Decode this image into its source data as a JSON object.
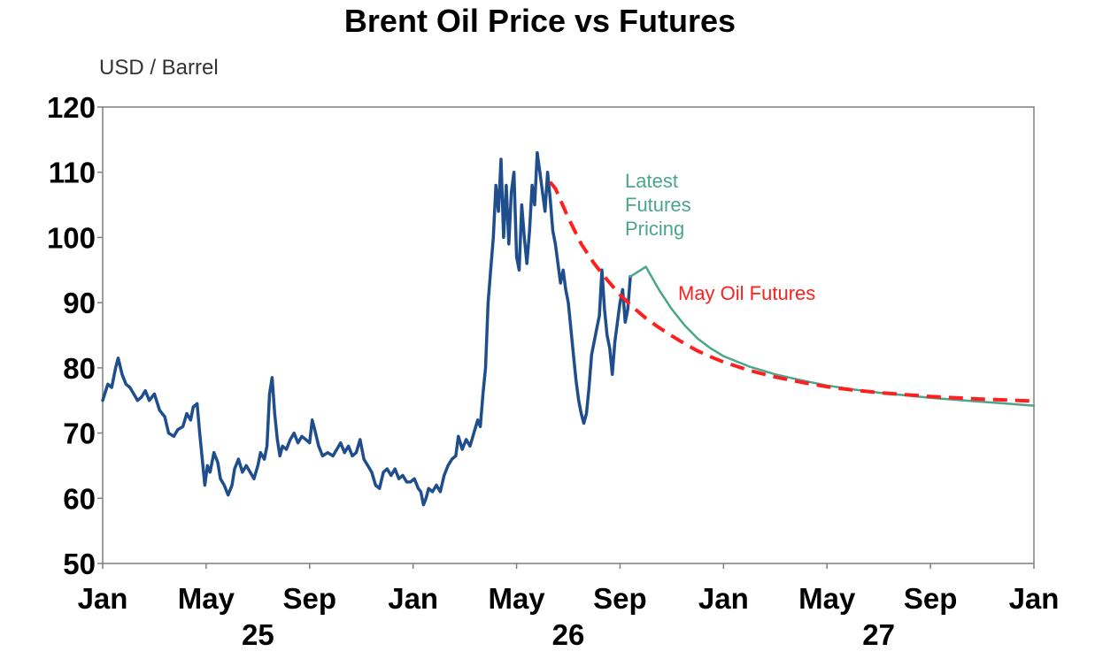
{
  "chart_data": {
    "type": "line",
    "title": "Brent Oil Price vs Futures",
    "ylabel": "USD / Barrel",
    "xlabel": "",
    "ylim": [
      50,
      120
    ],
    "yticks": [
      50,
      60,
      70,
      80,
      90,
      100,
      110,
      120
    ],
    "x_range_months": [
      0,
      36
    ],
    "x_ticks": [
      {
        "m": 0,
        "label": "Jan"
      },
      {
        "m": 4,
        "label": "May"
      },
      {
        "m": 8,
        "label": "Sep"
      },
      {
        "m": 12,
        "label": "Jan"
      },
      {
        "m": 16,
        "label": "May"
      },
      {
        "m": 20,
        "label": "Sep"
      },
      {
        "m": 24,
        "label": "Jan"
      },
      {
        "m": 28,
        "label": "May"
      },
      {
        "m": 32,
        "label": "Sep"
      },
      {
        "m": 36,
        "label": "Jan"
      }
    ],
    "years": [
      {
        "m": 6,
        "label": "25"
      },
      {
        "m": 18,
        "label": "26"
      },
      {
        "m": 30,
        "label": "27"
      }
    ],
    "grid": false,
    "legend": "annotations",
    "series": [
      {
        "key": "brent",
        "color": "#1f4e8c",
        "x_unit": "months since Jan 2025",
        "points": [
          [
            0.0,
            75.0
          ],
          [
            0.2,
            77.5
          ],
          [
            0.35,
            77.0
          ],
          [
            0.5,
            80.0
          ],
          [
            0.6,
            81.5
          ],
          [
            0.75,
            79.0
          ],
          [
            0.9,
            77.5
          ],
          [
            1.05,
            77.0
          ],
          [
            1.2,
            76.0
          ],
          [
            1.35,
            75.0
          ],
          [
            1.5,
            75.5
          ],
          [
            1.65,
            76.5
          ],
          [
            1.8,
            75.0
          ],
          [
            2.0,
            76.0
          ],
          [
            2.2,
            73.5
          ],
          [
            2.4,
            72.5
          ],
          [
            2.55,
            70.0
          ],
          [
            2.75,
            69.5
          ],
          [
            2.9,
            70.5
          ],
          [
            3.1,
            71.0
          ],
          [
            3.25,
            73.0
          ],
          [
            3.4,
            72.0
          ],
          [
            3.5,
            74.0
          ],
          [
            3.65,
            74.5
          ],
          [
            3.75,
            70.0
          ],
          [
            3.85,
            66.0
          ],
          [
            3.95,
            62.0
          ],
          [
            4.05,
            65.0
          ],
          [
            4.15,
            64.0
          ],
          [
            4.3,
            67.0
          ],
          [
            4.45,
            65.5
          ],
          [
            4.55,
            63.0
          ],
          [
            4.7,
            62.0
          ],
          [
            4.85,
            60.5
          ],
          [
            5.0,
            62.0
          ],
          [
            5.1,
            64.5
          ],
          [
            5.25,
            66.0
          ],
          [
            5.4,
            64.0
          ],
          [
            5.55,
            65.0
          ],
          [
            5.7,
            64.0
          ],
          [
            5.85,
            63.0
          ],
          [
            6.0,
            65.0
          ],
          [
            6.1,
            67.0
          ],
          [
            6.25,
            66.0
          ],
          [
            6.35,
            68.0
          ],
          [
            6.45,
            76.0
          ],
          [
            6.55,
            78.5
          ],
          [
            6.65,
            73.0
          ],
          [
            6.75,
            69.0
          ],
          [
            6.85,
            66.5
          ],
          [
            6.95,
            68.0
          ],
          [
            7.1,
            67.5
          ],
          [
            7.25,
            69.0
          ],
          [
            7.4,
            70.0
          ],
          [
            7.55,
            68.5
          ],
          [
            7.7,
            69.5
          ],
          [
            7.85,
            69.0
          ],
          [
            8.0,
            68.5
          ],
          [
            8.1,
            72.0
          ],
          [
            8.2,
            70.5
          ],
          [
            8.35,
            68.0
          ],
          [
            8.5,
            66.5
          ],
          [
            8.7,
            67.0
          ],
          [
            8.9,
            66.5
          ],
          [
            9.05,
            67.5
          ],
          [
            9.2,
            68.5
          ],
          [
            9.35,
            67.0
          ],
          [
            9.5,
            68.0
          ],
          [
            9.65,
            66.5
          ],
          [
            9.8,
            67.0
          ],
          [
            9.95,
            69.0
          ],
          [
            10.1,
            66.0
          ],
          [
            10.25,
            65.0
          ],
          [
            10.4,
            64.0
          ],
          [
            10.55,
            62.0
          ],
          [
            10.7,
            61.5
          ],
          [
            10.85,
            64.0
          ],
          [
            11.0,
            64.5
          ],
          [
            11.15,
            63.5
          ],
          [
            11.3,
            64.5
          ],
          [
            11.45,
            63.0
          ],
          [
            11.6,
            63.5
          ],
          [
            11.75,
            62.5
          ],
          [
            11.9,
            62.5
          ],
          [
            12.05,
            63.0
          ],
          [
            12.2,
            61.5
          ],
          [
            12.3,
            61.0
          ],
          [
            12.4,
            59.0
          ],
          [
            12.5,
            60.0
          ],
          [
            12.6,
            61.5
          ],
          [
            12.75,
            61.0
          ],
          [
            12.9,
            62.0
          ],
          [
            13.05,
            61.0
          ],
          [
            13.2,
            63.5
          ],
          [
            13.35,
            65.0
          ],
          [
            13.5,
            66.0
          ],
          [
            13.65,
            66.5
          ],
          [
            13.75,
            69.5
          ],
          [
            13.9,
            67.5
          ],
          [
            14.05,
            69.0
          ],
          [
            14.2,
            68.0
          ],
          [
            14.35,
            70.0
          ],
          [
            14.5,
            72.0
          ],
          [
            14.6,
            71.0
          ],
          [
            14.7,
            76.0
          ],
          [
            14.8,
            80.0
          ],
          [
            14.9,
            90.0
          ],
          [
            15.0,
            95.0
          ],
          [
            15.1,
            100.0
          ],
          [
            15.2,
            108.0
          ],
          [
            15.3,
            104.0
          ],
          [
            15.4,
            112.0
          ],
          [
            15.5,
            100.0
          ],
          [
            15.6,
            108.0
          ],
          [
            15.7,
            99.0
          ],
          [
            15.8,
            107.0
          ],
          [
            15.9,
            110.0
          ],
          [
            16.0,
            97.0
          ],
          [
            16.1,
            95.0
          ],
          [
            16.2,
            105.0
          ],
          [
            16.3,
            100.0
          ],
          [
            16.4,
            96.0
          ],
          [
            16.5,
            101.0
          ],
          [
            16.6,
            108.0
          ],
          [
            16.7,
            105.0
          ],
          [
            16.8,
            113.0
          ],
          [
            16.9,
            110.0
          ],
          [
            17.0,
            107.0
          ],
          [
            17.1,
            104.0
          ],
          [
            17.2,
            110.0
          ],
          [
            17.3,
            106.0
          ],
          [
            17.4,
            101.0
          ],
          [
            17.5,
            99.0
          ],
          [
            17.6,
            96.0
          ],
          [
            17.7,
            93.0
          ],
          [
            17.8,
            95.0
          ],
          [
            17.9,
            92.0
          ],
          [
            18.0,
            90.0
          ],
          [
            18.1,
            86.0
          ],
          [
            18.2,
            82.0
          ],
          [
            18.3,
            78.0
          ],
          [
            18.4,
            75.0
          ],
          [
            18.5,
            73.0
          ],
          [
            18.6,
            71.5
          ],
          [
            18.7,
            73.0
          ],
          [
            18.8,
            77.0
          ],
          [
            18.9,
            82.0
          ],
          [
            19.0,
            84.0
          ],
          [
            19.1,
            86.0
          ],
          [
            19.2,
            88.0
          ],
          [
            19.3,
            95.0
          ],
          [
            19.4,
            89.0
          ],
          [
            19.5,
            85.0
          ],
          [
            19.6,
            83.0
          ],
          [
            19.7,
            79.0
          ],
          [
            19.8,
            84.0
          ],
          [
            19.9,
            87.0
          ],
          [
            20.0,
            90.0
          ],
          [
            20.1,
            92.0
          ],
          [
            20.2,
            87.0
          ],
          [
            20.3,
            89.0
          ],
          [
            20.4,
            94.0
          ]
        ]
      },
      {
        "key": "latest_futures",
        "color": "#4aa58a",
        "x_unit": "months since Jan 2025",
        "points": [
          [
            20.4,
            94.0
          ],
          [
            21.0,
            95.5
          ],
          [
            21.5,
            92.0
          ],
          [
            22.0,
            89.0
          ],
          [
            22.5,
            86.5
          ],
          [
            23.0,
            84.5
          ],
          [
            23.5,
            83.0
          ],
          [
            24.0,
            81.8
          ],
          [
            25.0,
            80.2
          ],
          [
            26.0,
            79.0
          ],
          [
            27.0,
            78.1
          ],
          [
            28.0,
            77.3
          ],
          [
            29.0,
            76.7
          ],
          [
            30.0,
            76.2
          ],
          [
            31.0,
            75.8
          ],
          [
            32.0,
            75.4
          ],
          [
            33.0,
            75.1
          ],
          [
            34.0,
            74.8
          ],
          [
            35.0,
            74.5
          ],
          [
            36.0,
            74.2
          ]
        ]
      },
      {
        "key": "may_futures",
        "color": "#ff1f1f",
        "x_unit": "months since Jan 2025",
        "points": [
          [
            17.3,
            108.5
          ],
          [
            17.5,
            107.5
          ],
          [
            18.0,
            103.0
          ],
          [
            18.5,
            99.0
          ],
          [
            19.0,
            96.0
          ],
          [
            19.5,
            93.5
          ],
          [
            20.0,
            91.2
          ],
          [
            20.5,
            89.3
          ],
          [
            21.0,
            87.6
          ],
          [
            21.5,
            86.2
          ],
          [
            22.0,
            84.9
          ],
          [
            22.5,
            83.7
          ],
          [
            23.0,
            82.6
          ],
          [
            23.5,
            81.7
          ],
          [
            24.0,
            80.9
          ],
          [
            25.0,
            79.6
          ],
          [
            26.0,
            78.6
          ],
          [
            27.0,
            77.8
          ],
          [
            28.0,
            77.1
          ],
          [
            29.0,
            76.6
          ],
          [
            30.0,
            76.2
          ],
          [
            31.0,
            75.9
          ],
          [
            32.0,
            75.6
          ],
          [
            33.0,
            75.4
          ],
          [
            34.0,
            75.2
          ],
          [
            35.0,
            75.05
          ],
          [
            36.0,
            74.9
          ]
        ]
      }
    ],
    "annotations": [
      {
        "key": "latest",
        "lines": [
          "Latest",
          "Futures",
          "Pricing"
        ],
        "color": "#4aa58a"
      },
      {
        "key": "may",
        "lines": [
          "May Oil Futures"
        ],
        "color": "#ff1f1f"
      }
    ]
  }
}
